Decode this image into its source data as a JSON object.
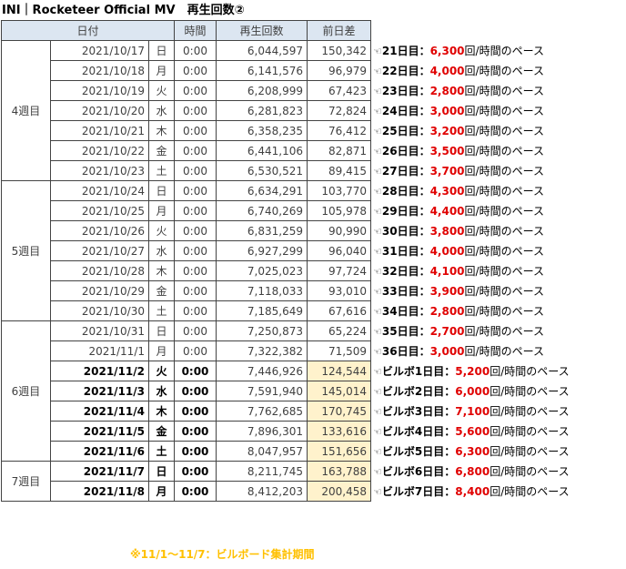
{
  "title": "INI｜Rocketeer Official MV　再生回数②",
  "headers": {
    "date": "日付",
    "time": "時間",
    "plays": "再生回数",
    "diff": "前日差"
  },
  "weeks": [
    {
      "label": "4週目",
      "rows": [
        {
          "date": "2021/10/17",
          "day": "日",
          "time": "0:00",
          "plays": "6,044,597",
          "diff": "150,342",
          "nth": "21日目：",
          "pace": "6,300",
          "suffix": "回/時間のペース"
        },
        {
          "date": "2021/10/18",
          "day": "月",
          "time": "0:00",
          "plays": "6,141,576",
          "diff": "96,979",
          "nth": "22日目：",
          "pace": "4,000",
          "suffix": "回/時間のペース"
        },
        {
          "date": "2021/10/19",
          "day": "火",
          "time": "0:00",
          "plays": "6,208,999",
          "diff": "67,423",
          "nth": "23日目：",
          "pace": "2,800",
          "suffix": "回/時間のペース"
        },
        {
          "date": "2021/10/20",
          "day": "水",
          "time": "0:00",
          "plays": "6,281,823",
          "diff": "72,824",
          "nth": "24日目：",
          "pace": "3,000",
          "suffix": "回/時間のペース"
        },
        {
          "date": "2021/10/21",
          "day": "木",
          "time": "0:00",
          "plays": "6,358,235",
          "diff": "76,412",
          "nth": "25日目：",
          "pace": "3,200",
          "suffix": "回/時間のペース"
        },
        {
          "date": "2021/10/22",
          "day": "金",
          "time": "0:00",
          "plays": "6,441,106",
          "diff": "82,871",
          "nth": "26日目：",
          "pace": "3,500",
          "suffix": "回/時間のペース"
        },
        {
          "date": "2021/10/23",
          "day": "土",
          "time": "0:00",
          "plays": "6,530,521",
          "diff": "89,415",
          "nth": "27日目：",
          "pace": "3,700",
          "suffix": "回/時間のペース"
        }
      ]
    },
    {
      "label": "5週目",
      "rows": [
        {
          "date": "2021/10/24",
          "day": "日",
          "time": "0:00",
          "plays": "6,634,291",
          "diff": "103,770",
          "nth": "28日目：",
          "pace": "4,300",
          "suffix": "回/時間のペース"
        },
        {
          "date": "2021/10/25",
          "day": "月",
          "time": "0:00",
          "plays": "6,740,269",
          "diff": "105,978",
          "nth": "29日目：",
          "pace": "4,400",
          "suffix": "回/時間のペース"
        },
        {
          "date": "2021/10/26",
          "day": "火",
          "time": "0:00",
          "plays": "6,831,259",
          "diff": "90,990",
          "nth": "30日目：",
          "pace": "3,800",
          "suffix": "回/時間のペース"
        },
        {
          "date": "2021/10/27",
          "day": "水",
          "time": "0:00",
          "plays": "6,927,299",
          "diff": "96,040",
          "nth": "31日目：",
          "pace": "4,000",
          "suffix": "回/時間のペース"
        },
        {
          "date": "2021/10/28",
          "day": "木",
          "time": "0:00",
          "plays": "7,025,023",
          "diff": "97,724",
          "nth": "32日目：",
          "pace": "4,100",
          "suffix": "回/時間のペース"
        },
        {
          "date": "2021/10/29",
          "day": "金",
          "time": "0:00",
          "plays": "7,118,033",
          "diff": "93,010",
          "nth": "33日目：",
          "pace": "3,900",
          "suffix": "回/時間のペース"
        },
        {
          "date": "2021/10/30",
          "day": "土",
          "time": "0:00",
          "plays": "7,185,649",
          "diff": "67,616",
          "nth": "34日目：",
          "pace": "2,800",
          "suffix": "回/時間のペース"
        }
      ]
    },
    {
      "label": "6週目",
      "rows": [
        {
          "date": "2021/10/31",
          "day": "日",
          "time": "0:00",
          "plays": "7,250,873",
          "diff": "65,224",
          "nth": "35日目：",
          "pace": "2,700",
          "suffix": "回/時間のペース"
        },
        {
          "date": "2021/11/1",
          "day": "月",
          "time": "0:00",
          "plays": "7,322,382",
          "diff": "71,509",
          "nth": "36日目：",
          "pace": "3,000",
          "suffix": "回/時間のペース"
        },
        {
          "date": "2021/11/2",
          "day": "火",
          "time": "0:00",
          "plays": "7,446,926",
          "diff": "124,544",
          "nth": "ビルボ1日目：",
          "pace": "5,200",
          "suffix": "回/時間のペース",
          "bold": true
        },
        {
          "date": "2021/11/3",
          "day": "水",
          "time": "0:00",
          "plays": "7,591,940",
          "diff": "145,014",
          "nth": "ビルボ2日目：",
          "pace": "6,000",
          "suffix": "回/時間のペース",
          "bold": true
        },
        {
          "date": "2021/11/4",
          "day": "木",
          "time": "0:00",
          "plays": "7,762,685",
          "diff": "170,745",
          "nth": "ビルボ3日目：",
          "pace": "7,100",
          "suffix": "回/時間のペース",
          "bold": true
        },
        {
          "date": "2021/11/5",
          "day": "金",
          "time": "0:00",
          "plays": "7,896,301",
          "diff": "133,616",
          "nth": "ビルボ4日目：",
          "pace": "5,600",
          "suffix": "回/時間のペース",
          "bold": true
        },
        {
          "date": "2021/11/6",
          "day": "土",
          "time": "0:00",
          "plays": "8,047,957",
          "diff": "151,656",
          "nth": "ビルボ5日目：",
          "pace": "6,300",
          "suffix": "回/時間のペース",
          "bold": true
        }
      ]
    },
    {
      "label": "7週目",
      "rows": [
        {
          "date": "2021/11/7",
          "day": "日",
          "time": "0:00",
          "plays": "8,211,745",
          "diff": "163,788",
          "nth": "ビルボ6日目：",
          "pace": "6,800",
          "suffix": "回/時間のペース",
          "bold": true
        },
        {
          "date": "2021/11/8",
          "day": "月",
          "time": "0:00",
          "plays": "8,412,203",
          "diff": "200,458",
          "nth": "ビルボ7日目：",
          "pace": "8,400",
          "suffix": "回/時間のペース",
          "bold": true
        }
      ]
    }
  ],
  "hand_glyph": "☜",
  "footnote": "※11/1～11/7：ビルボード集計期間",
  "colors": {
    "header_bg": "#dce6f1",
    "highlight_bg": "#fff2cc",
    "pace_red": "#e00000",
    "footnote": "#ffc000"
  }
}
